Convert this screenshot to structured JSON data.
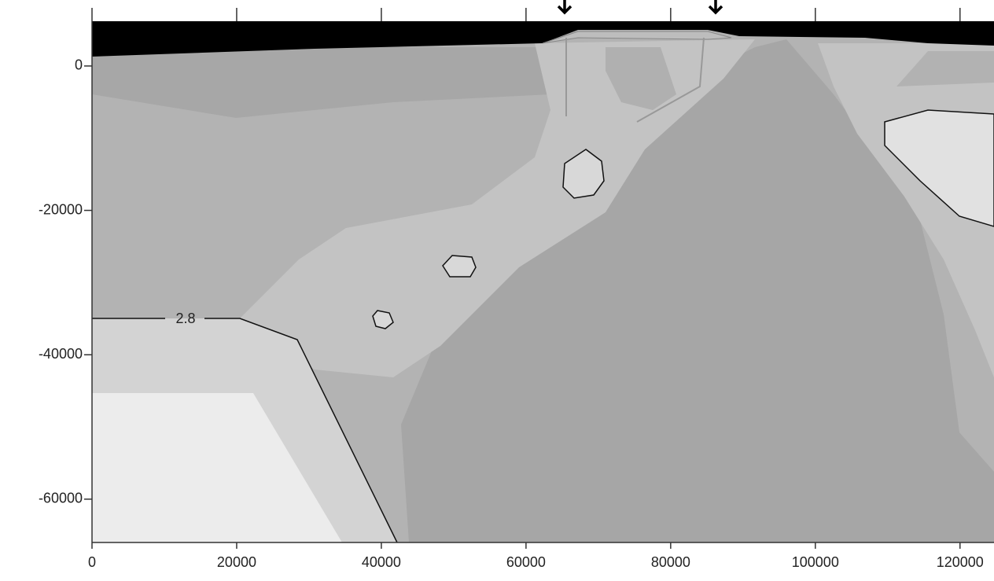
{
  "chart_data": {
    "type": "contour",
    "xlim": [
      0,
      124700
    ],
    "ylim": [
      -66000,
      6200
    ],
    "xticks": [
      0,
      20000,
      40000,
      60000,
      80000,
      100000,
      120000
    ],
    "yticks": [
      0,
      -20000,
      -40000,
      -60000
    ],
    "annotation": "2.8"
  }
}
